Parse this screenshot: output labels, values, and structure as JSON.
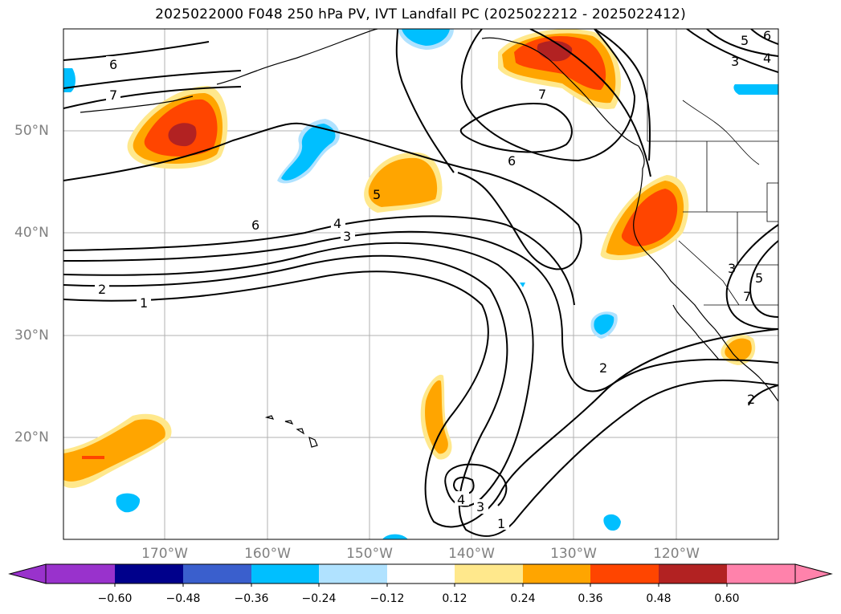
{
  "title": "2025022000 F048 250 hPa PV, IVT Landfall PC (2025022212 - 2025022412)",
  "map": {
    "lat_labels": [
      "50°N",
      "40°N",
      "30°N",
      "20°N"
    ],
    "lon_labels": [
      "170°W",
      "160°W",
      "150°W",
      "140°W",
      "130°W",
      "120°W"
    ],
    "contour_labels": [
      "6",
      "7",
      "6",
      "4",
      "3",
      "5",
      "2",
      "1",
      "6",
      "5",
      "4",
      "3",
      "6",
      "7",
      "2",
      "4",
      "3",
      "1",
      "3",
      "5",
      "7",
      "2"
    ]
  },
  "colorbar": {
    "ticks": [
      "−0.60",
      "−0.48",
      "−0.36",
      "−0.24",
      "−0.12",
      "0.12",
      "0.24",
      "0.36",
      "0.48",
      "0.60"
    ],
    "colors": [
      "#9932cc",
      "#00008b",
      "#3a5fcd",
      "#00bfff",
      "#b0e2ff",
      "#ffffff",
      "#ffe88c",
      "#ffa500",
      "#ff4500",
      "#b22222",
      "#ff82ab"
    ]
  }
}
